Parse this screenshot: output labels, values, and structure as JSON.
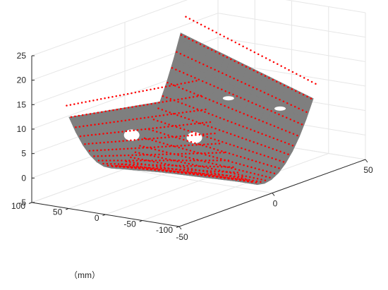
{
  "chart_data": {
    "type": "scatter",
    "title": "",
    "xlabel": "",
    "ylabel": "",
    "zlabel": "",
    "unit_label": "（mm）",
    "axes": {
      "x": {
        "lim": [
          -100,
          100
        ],
        "ticks": [
          -100,
          -50,
          0,
          50,
          100
        ],
        "tick_labels": [
          "-100",
          "-50",
          "0",
          "50",
          "100"
        ]
      },
      "y": {
        "lim": [
          -50,
          50
        ],
        "ticks": [
          -50,
          0,
          50
        ],
        "tick_labels": [
          "-50",
          "0",
          "50"
        ]
      },
      "z": {
        "lim": [
          -5,
          25
        ],
        "ticks": [
          -5,
          0,
          5,
          10,
          15,
          20,
          25
        ],
        "tick_labels": [
          "-5",
          "0",
          "5",
          "10",
          "15",
          "20",
          "25"
        ]
      }
    },
    "grid": true,
    "series": [
      {
        "kind": "surface",
        "color": "#7f7f7f",
        "shape": "parabolic trough",
        "z_range": [
          -3,
          22
        ]
      },
      {
        "kind": "points",
        "color": "#ff0000",
        "shape": "parabolic trough point grid",
        "z_range": [
          -3,
          22
        ]
      }
    ],
    "colors": {
      "surface": "#7f7f7f",
      "points": "#ff0000",
      "grid": "#e6e6e6",
      "axis": "#262626"
    }
  }
}
